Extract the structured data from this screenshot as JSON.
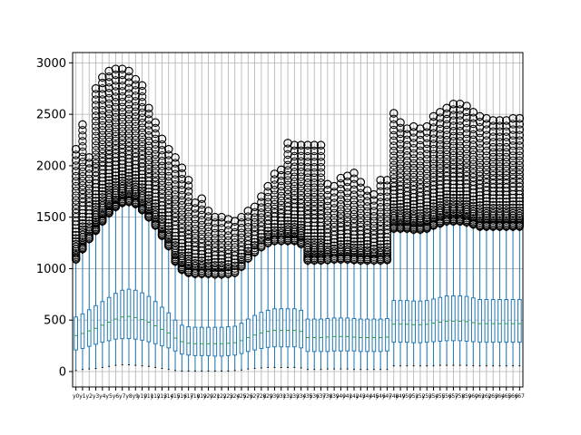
{
  "chart_data": {
    "type": "boxplot",
    "title": "",
    "xlabel": "",
    "ylabel": "",
    "ylim": [
      -150,
      3100
    ],
    "yticks": [
      0,
      500,
      1000,
      1500,
      2000,
      2500,
      3000
    ],
    "ytick_labels": [
      "0",
      "500",
      "1000",
      "1500",
      "2000",
      "2500",
      "3000"
    ],
    "grid": true,
    "categories": [
      "y0",
      "y1",
      "y2",
      "y3",
      "y4",
      "y5",
      "y6",
      "y7",
      "y8",
      "y9",
      "y10",
      "y11",
      "y12",
      "y13",
      "y14",
      "y15",
      "y16",
      "y17",
      "y18",
      "y19",
      "y20",
      "y21",
      "y22",
      "y23",
      "y24",
      "y25",
      "y26",
      "y27",
      "y28",
      "y29",
      "y30",
      "y31",
      "y32",
      "y33",
      "y34",
      "y35",
      "y36",
      "y37",
      "y38",
      "y39",
      "y40",
      "y41",
      "y42",
      "y43",
      "y44",
      "y45",
      "y46",
      "y47",
      "y48",
      "y49",
      "y50",
      "y51",
      "y52",
      "y53",
      "y54",
      "y55",
      "y56",
      "y57",
      "y58",
      "y59",
      "y60",
      "y61",
      "y62",
      "y63",
      "y64",
      "y65",
      "y66",
      "y67"
    ],
    "q1": [
      210,
      225,
      245,
      265,
      285,
      300,
      315,
      320,
      320,
      315,
      305,
      290,
      270,
      250,
      230,
      200,
      170,
      160,
      155,
      155,
      155,
      150,
      150,
      155,
      160,
      175,
      195,
      210,
      225,
      235,
      240,
      240,
      240,
      240,
      230,
      195,
      195,
      195,
      195,
      200,
      200,
      200,
      200,
      195,
      195,
      195,
      195,
      200,
      285,
      285,
      285,
      280,
      280,
      285,
      290,
      295,
      300,
      300,
      300,
      295,
      290,
      285,
      285,
      285,
      285,
      285,
      285,
      285
    ],
    "median": [
      350,
      370,
      395,
      420,
      450,
      480,
      510,
      530,
      535,
      525,
      505,
      480,
      445,
      410,
      375,
      325,
      290,
      275,
      270,
      270,
      270,
      270,
      270,
      275,
      280,
      300,
      330,
      355,
      375,
      390,
      400,
      400,
      400,
      400,
      390,
      330,
      330,
      330,
      335,
      340,
      340,
      340,
      335,
      330,
      330,
      330,
      330,
      335,
      460,
      460,
      460,
      455,
      455,
      460,
      470,
      480,
      490,
      490,
      490,
      485,
      475,
      465,
      465,
      465,
      465,
      465,
      465,
      465
    ],
    "q3": [
      530,
      560,
      600,
      640,
      680,
      720,
      760,
      790,
      800,
      790,
      765,
      730,
      680,
      625,
      570,
      500,
      450,
      435,
      430,
      430,
      430,
      430,
      430,
      435,
      440,
      470,
      510,
      545,
      575,
      595,
      610,
      610,
      610,
      610,
      595,
      510,
      510,
      510,
      515,
      520,
      520,
      520,
      515,
      510,
      510,
      510,
      510,
      515,
      690,
      690,
      690,
      685,
      685,
      690,
      705,
      720,
      735,
      735,
      735,
      730,
      715,
      700,
      700,
      700,
      700,
      700,
      700,
      700
    ],
    "wmin": [
      10,
      20,
      25,
      30,
      40,
      50,
      60,
      65,
      65,
      60,
      55,
      50,
      40,
      30,
      20,
      10,
      5,
      5,
      5,
      5,
      5,
      5,
      5,
      5,
      10,
      15,
      25,
      30,
      35,
      40,
      40,
      40,
      40,
      40,
      35,
      20,
      20,
      20,
      25,
      25,
      25,
      25,
      20,
      20,
      20,
      20,
      20,
      20,
      55,
      55,
      55,
      55,
      55,
      55,
      55,
      60,
      60,
      60,
      60,
      60,
      55,
      55,
      55,
      55,
      55,
      55,
      55,
      55
    ],
    "wmax": [
      1050,
      1150,
      1250,
      1330,
      1420,
      1500,
      1560,
      1600,
      1610,
      1590,
      1530,
      1460,
      1380,
      1280,
      1180,
      1030,
      950,
      920,
      910,
      910,
      910,
      905,
      905,
      910,
      920,
      980,
      1060,
      1120,
      1170,
      1210,
      1230,
      1230,
      1230,
      1230,
      1200,
      1040,
      1040,
      1040,
      1045,
      1050,
      1050,
      1050,
      1045,
      1040,
      1040,
      1040,
      1040,
      1045,
      1350,
      1350,
      1350,
      1340,
      1340,
      1350,
      1380,
      1400,
      1420,
      1420,
      1420,
      1410,
      1390,
      1370,
      1370,
      1370,
      1370,
      1370,
      1370,
      1370
    ],
    "outlier_max": [
      2160,
      2400,
      2080,
      2750,
      2860,
      2920,
      2940,
      2940,
      2920,
      2840,
      2780,
      2560,
      2420,
      2260,
      2160,
      2080,
      1980,
      1860,
      1640,
      1680,
      1560,
      1500,
      1500,
      1480,
      1460,
      1500,
      1560,
      1600,
      1700,
      1800,
      1920,
      1960,
      2220,
      2200,
      2200,
      2200,
      2200,
      2200,
      1820,
      1800,
      1880,
      1900,
      1930,
      1840,
      1760,
      1720,
      1860,
      1860,
      2510,
      2420,
      2360,
      2380,
      2360,
      2380,
      2480,
      2520,
      2560,
      2600,
      2600,
      2580,
      2520,
      2480,
      2460,
      2440,
      2440,
      2440,
      2460,
      2460
    ]
  },
  "xtick_label_text": "y0y1y2y3y4y5y6y7y8y9y10y11y12y13y14y15y16y17y18y19y20y21y22y23y24y25y26y27y28y29y30y31y32y33y34y35y36y37y38y39y40y41y42y43y44y45y46y47y48y49y50y51y52y53y54y55y56y57y58y59y60y61y62y63y64y65y66y67",
  "colors": {
    "box": "#1f77b4",
    "median": "#2ca02c",
    "outlier": "#000000",
    "grid": "#b0b0b0",
    "axis": "#000000"
  }
}
